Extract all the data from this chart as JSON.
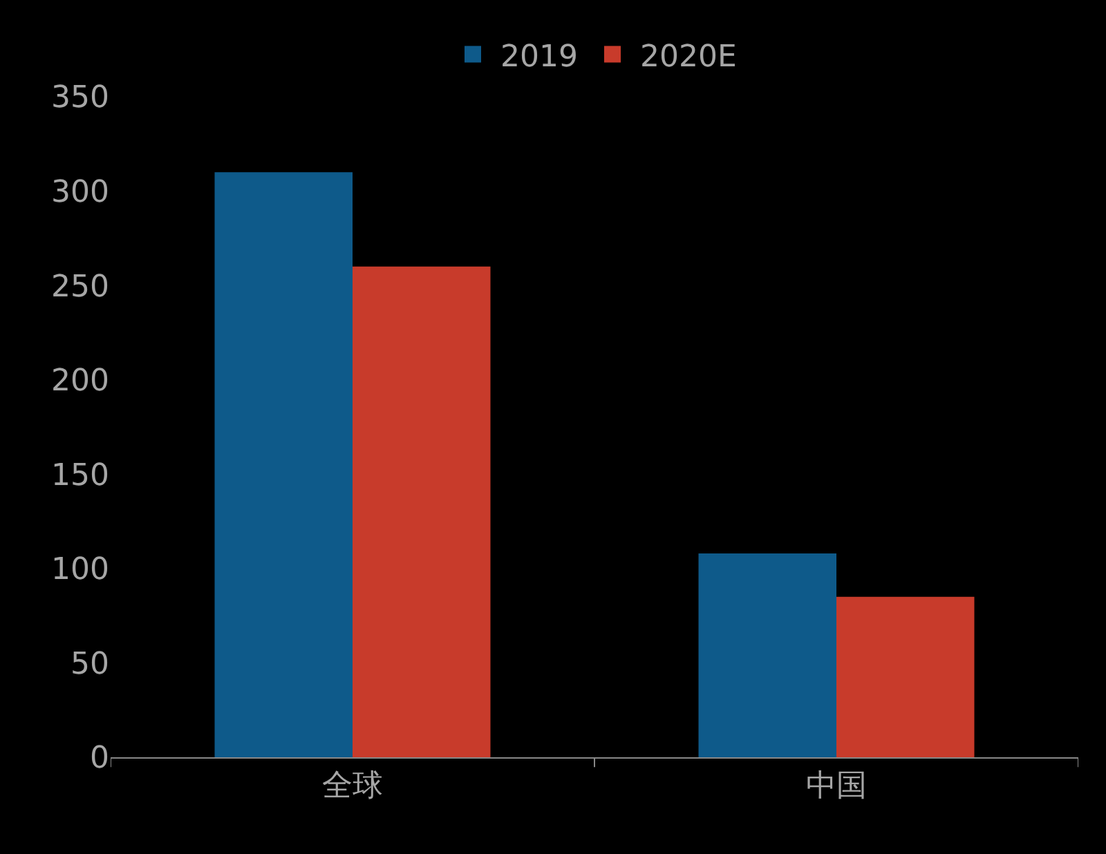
{
  "chart_data": {
    "type": "bar",
    "categories": [
      "全球",
      "中国"
    ],
    "series": [
      {
        "name": "2019",
        "color": "#0e5a8a",
        "values": [
          310,
          108
        ]
      },
      {
        "name": "2020E",
        "color": "#c83b2b",
        "values": [
          260,
          85
        ]
      }
    ],
    "ylim": [
      0,
      350
    ],
    "yticks": [
      0,
      50,
      100,
      150,
      200,
      250,
      300,
      350
    ],
    "grid": false,
    "legend": "top"
  }
}
